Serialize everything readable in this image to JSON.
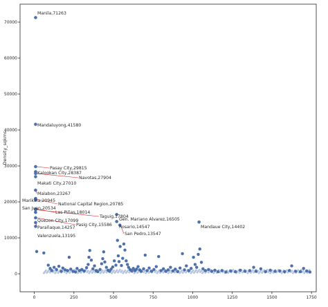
{
  "chart_data": {
    "type": "scatter",
    "title": "",
    "xlabel": "",
    "ylabel": "Density_sqkms",
    "xlim": [
      -90,
      1780
    ],
    "ylim": [
      -5000,
      75000
    ],
    "x_ticks": [
      0,
      250,
      500,
      750,
      1000,
      1250,
      1500,
      1750
    ],
    "y_ticks": [
      0,
      10000,
      20000,
      30000,
      40000,
      50000,
      60000,
      70000
    ],
    "grid": false,
    "colors": {
      "point": "#4c72b0",
      "point_edge": "#2b4a7e",
      "connector": "#d62728",
      "axis": "#262626"
    },
    "annotations": [
      {
        "label": "Manila,71263",
        "x": 8,
        "y": 71263
      },
      {
        "label": "Mandaluyong,41580",
        "x": 8,
        "y": 41580
      },
      {
        "label": "Pasay City,29815",
        "x": 8,
        "y": 29815
      },
      {
        "label": "Kalookan City,28387",
        "x": 8,
        "y": 28387
      },
      {
        "label": "Navotas,27904",
        "x": 8,
        "y": 27904
      },
      {
        "label": "Makati City,27010",
        "x": 8,
        "y": 27010
      },
      {
        "label": "Malabon,23267",
        "x": 8,
        "y": 23267
      },
      {
        "label": "Marikina,20945",
        "x": 8,
        "y": 20945
      },
      {
        "label": "National Capital Region,20785",
        "x": 8,
        "y": 20785
      },
      {
        "label": "San Juan,20534",
        "x": 8,
        "y": 20534
      },
      {
        "label": "Las Piñas,18014",
        "x": 8,
        "y": 18014
      },
      {
        "label": "Taguig,17804",
        "x": 8,
        "y": 17804
      },
      {
        "label": "Quezon City,17099",
        "x": 8,
        "y": 17099
      },
      {
        "label": "Gen. Mariano Alvarez,16505",
        "x": 520,
        "y": 16505
      },
      {
        "label": "Pasig City,15586",
        "x": 8,
        "y": 15586
      },
      {
        "label": "Rosario,14547",
        "x": 520,
        "y": 14547
      },
      {
        "label": "Parañaque,14257",
        "x": 8,
        "y": 14257
      },
      {
        "label": "Mandaue City,14402",
        "x": 1040,
        "y": 14402
      },
      {
        "label": "San Pedro,13547",
        "x": 540,
        "y": 13547
      },
      {
        "label": "Valenzuela,13195",
        "x": 8,
        "y": 13195
      }
    ],
    "other_points": [
      {
        "x": 15,
        "y": 6200
      },
      {
        "x": 60,
        "y": 5800
      },
      {
        "x": 88,
        "y": 2400
      },
      {
        "x": 100,
        "y": 1500
      },
      {
        "x": 110,
        "y": 900
      },
      {
        "x": 125,
        "y": 1800
      },
      {
        "x": 140,
        "y": 1200
      },
      {
        "x": 155,
        "y": 2100
      },
      {
        "x": 170,
        "y": 700
      },
      {
        "x": 180,
        "y": 1600
      },
      {
        "x": 195,
        "y": 1100
      },
      {
        "x": 210,
        "y": 900
      },
      {
        "x": 220,
        "y": 4600
      },
      {
        "x": 230,
        "y": 1300
      },
      {
        "x": 245,
        "y": 700
      },
      {
        "x": 260,
        "y": 500
      },
      {
        "x": 270,
        "y": 1500
      },
      {
        "x": 285,
        "y": 900
      },
      {
        "x": 300,
        "y": 1200
      },
      {
        "x": 315,
        "y": 800
      },
      {
        "x": 330,
        "y": 1700
      },
      {
        "x": 340,
        "y": 2600
      },
      {
        "x": 345,
        "y": 4600
      },
      {
        "x": 350,
        "y": 6500
      },
      {
        "x": 360,
        "y": 3800
      },
      {
        "x": 370,
        "y": 1400
      },
      {
        "x": 380,
        "y": 2200
      },
      {
        "x": 390,
        "y": 900
      },
      {
        "x": 400,
        "y": 600
      },
      {
        "x": 415,
        "y": 1200
      },
      {
        "x": 425,
        "y": 2800
      },
      {
        "x": 432,
        "y": 4200
      },
      {
        "x": 438,
        "y": 6100
      },
      {
        "x": 445,
        "y": 3300
      },
      {
        "x": 455,
        "y": 1800
      },
      {
        "x": 465,
        "y": 1000
      },
      {
        "x": 475,
        "y": 700
      },
      {
        "x": 485,
        "y": 1300
      },
      {
        "x": 495,
        "y": 1900
      },
      {
        "x": 505,
        "y": 3600
      },
      {
        "x": 515,
        "y": 2400
      },
      {
        "x": 525,
        "y": 9300
      },
      {
        "x": 530,
        "y": 5000
      },
      {
        "x": 535,
        "y": 3400
      },
      {
        "x": 542,
        "y": 7600
      },
      {
        "x": 550,
        "y": 2300
      },
      {
        "x": 558,
        "y": 4300
      },
      {
        "x": 565,
        "y": 8300
      },
      {
        "x": 572,
        "y": 6600
      },
      {
        "x": 580,
        "y": 3600
      },
      {
        "x": 588,
        "y": 2600
      },
      {
        "x": 595,
        "y": 1800
      },
      {
        "x": 605,
        "y": 1200
      },
      {
        "x": 615,
        "y": 800
      },
      {
        "x": 625,
        "y": 1500
      },
      {
        "x": 635,
        "y": 900
      },
      {
        "x": 645,
        "y": 1300
      },
      {
        "x": 655,
        "y": 2000
      },
      {
        "x": 665,
        "y": 1100
      },
      {
        "x": 675,
        "y": 700
      },
      {
        "x": 690,
        "y": 1400
      },
      {
        "x": 700,
        "y": 5200
      },
      {
        "x": 712,
        "y": 900
      },
      {
        "x": 725,
        "y": 1600
      },
      {
        "x": 740,
        "y": 700
      },
      {
        "x": 755,
        "y": 1200
      },
      {
        "x": 770,
        "y": 2000
      },
      {
        "x": 785,
        "y": 4800
      },
      {
        "x": 800,
        "y": 900
      },
      {
        "x": 815,
        "y": 1400
      },
      {
        "x": 830,
        "y": 700
      },
      {
        "x": 845,
        "y": 1100
      },
      {
        "x": 860,
        "y": 1800
      },
      {
        "x": 875,
        "y": 800
      },
      {
        "x": 890,
        "y": 1300
      },
      {
        "x": 905,
        "y": 600
      },
      {
        "x": 920,
        "y": 1600
      },
      {
        "x": 935,
        "y": 5600
      },
      {
        "x": 948,
        "y": 1100
      },
      {
        "x": 960,
        "y": 2200
      },
      {
        "x": 975,
        "y": 900
      },
      {
        "x": 990,
        "y": 1500
      },
      {
        "x": 1005,
        "y": 4600
      },
      {
        "x": 1015,
        "y": 2600
      },
      {
        "x": 1025,
        "y": 1800
      },
      {
        "x": 1035,
        "y": 5400
      },
      {
        "x": 1045,
        "y": 6900
      },
      {
        "x": 1055,
        "y": 3200
      },
      {
        "x": 1065,
        "y": 1400
      },
      {
        "x": 1080,
        "y": 900
      },
      {
        "x": 1100,
        "y": 1200
      },
      {
        "x": 1120,
        "y": 700
      },
      {
        "x": 1140,
        "y": 1000
      },
      {
        "x": 1160,
        "y": 600
      },
      {
        "x": 1185,
        "y": 900
      },
      {
        "x": 1210,
        "y": 500
      },
      {
        "x": 1240,
        "y": 800
      },
      {
        "x": 1270,
        "y": 600
      },
      {
        "x": 1300,
        "y": 1000
      },
      {
        "x": 1330,
        "y": 700
      },
      {
        "x": 1360,
        "y": 900
      },
      {
        "x": 1385,
        "y": 1800
      },
      {
        "x": 1400,
        "y": 700
      },
      {
        "x": 1430,
        "y": 1400
      },
      {
        "x": 1460,
        "y": 600
      },
      {
        "x": 1490,
        "y": 1000
      },
      {
        "x": 1520,
        "y": 700
      },
      {
        "x": 1550,
        "y": 800
      },
      {
        "x": 1580,
        "y": 600
      },
      {
        "x": 1610,
        "y": 900
      },
      {
        "x": 1625,
        "y": 2200
      },
      {
        "x": 1650,
        "y": 700
      },
      {
        "x": 1680,
        "y": 600
      },
      {
        "x": 1700,
        "y": 1500
      },
      {
        "x": 1720,
        "y": 800
      },
      {
        "x": 1740,
        "y": 500
      }
    ]
  }
}
